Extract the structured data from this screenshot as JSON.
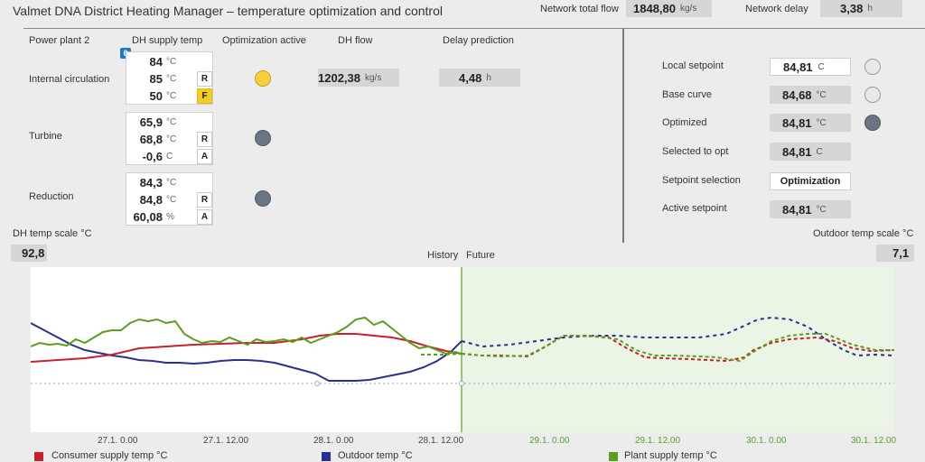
{
  "header": {
    "title": "Valmet DNA District Heating Manager – temperature optimization and control",
    "network_flow_label": "Network total flow",
    "network_flow_value": "1848,80",
    "network_flow_unit": "kg/s",
    "network_delay_label": "Network delay",
    "network_delay_value": "3,38",
    "network_delay_unit": "h"
  },
  "plant": {
    "name": "Power plant 2",
    "col_supply": "DH supply temp",
    "col_opt": "Optimization active",
    "col_flow": "DH flow",
    "col_delay": "Delay prediction",
    "rows": [
      {
        "label": "Internal circulation",
        "lines": [
          {
            "value": "84",
            "unit": "°C",
            "tag": ""
          },
          {
            "value": "85",
            "unit": "°C",
            "tag": "R"
          },
          {
            "value": "50",
            "unit": "°C",
            "tag": "F"
          }
        ],
        "opt_state": "active"
      },
      {
        "label": "Turbine",
        "lines": [
          {
            "value": "65,9",
            "unit": "°C",
            "tag": ""
          },
          {
            "value": "68,8",
            "unit": "°C",
            "tag": "R"
          },
          {
            "value": "-0,6",
            "unit": "C",
            "tag": "A"
          }
        ],
        "opt_state": "inactive"
      },
      {
        "label": "Reduction",
        "lines": [
          {
            "value": "84,3",
            "unit": "°C",
            "tag": ""
          },
          {
            "value": "84,8",
            "unit": "°C",
            "tag": "R"
          },
          {
            "value": "60,08",
            "unit": "%",
            "tag": "A"
          }
        ],
        "opt_state": "inactive"
      }
    ],
    "flow_value": "1202,38",
    "flow_unit": "kg/s",
    "delay_value": "4,48",
    "delay_unit": "h",
    "info_icon": "6"
  },
  "setpoints": {
    "local_label": "Local setpoint",
    "local_value": "84,81",
    "local_unit": "C",
    "base_label": "Base curve",
    "base_value": "84,68",
    "base_unit": "°C",
    "opt_label": "Optimized",
    "opt_value": "84,81",
    "opt_unit": "°C",
    "selected_label": "Selected to opt",
    "selected_value": "84,81",
    "selected_unit": "C",
    "selection_label": "Setpoint selection",
    "selection_value": "Optimization",
    "active_label": "Active setpoint",
    "active_value": "84,81",
    "active_unit": "°C"
  },
  "chart": {
    "left_scale_label": "DH temp scale °C",
    "left_scale_value": "92,8",
    "right_scale_label": "Outdoor temp scale °C",
    "right_scale_value": "7,1",
    "history_label": "History",
    "future_label": "Future",
    "xticks": [
      "27.1. 0.00",
      "27.1. 12.00",
      "28.1. 0.00",
      "28.1. 12.00",
      "29.1. 0.00",
      "29.1. 12.00",
      "30.1. 0.00",
      "30.1. 12.00"
    ],
    "legend": [
      {
        "label": "Consumer supply temp °C",
        "color": "#c8202f"
      },
      {
        "label": "Outdoor temp °C",
        "color": "#2b2f8f"
      },
      {
        "label": "Plant supply temp °C",
        "color": "#5a9e1e"
      }
    ]
  },
  "colors": {
    "consumer": "#c8202f",
    "outdoor": "#2b2f8f",
    "plant": "#5a9e1e",
    "future_bg": "#eaf5e6",
    "active_dot": "#f4d23c",
    "inactive_dot": "#6b7583"
  }
}
